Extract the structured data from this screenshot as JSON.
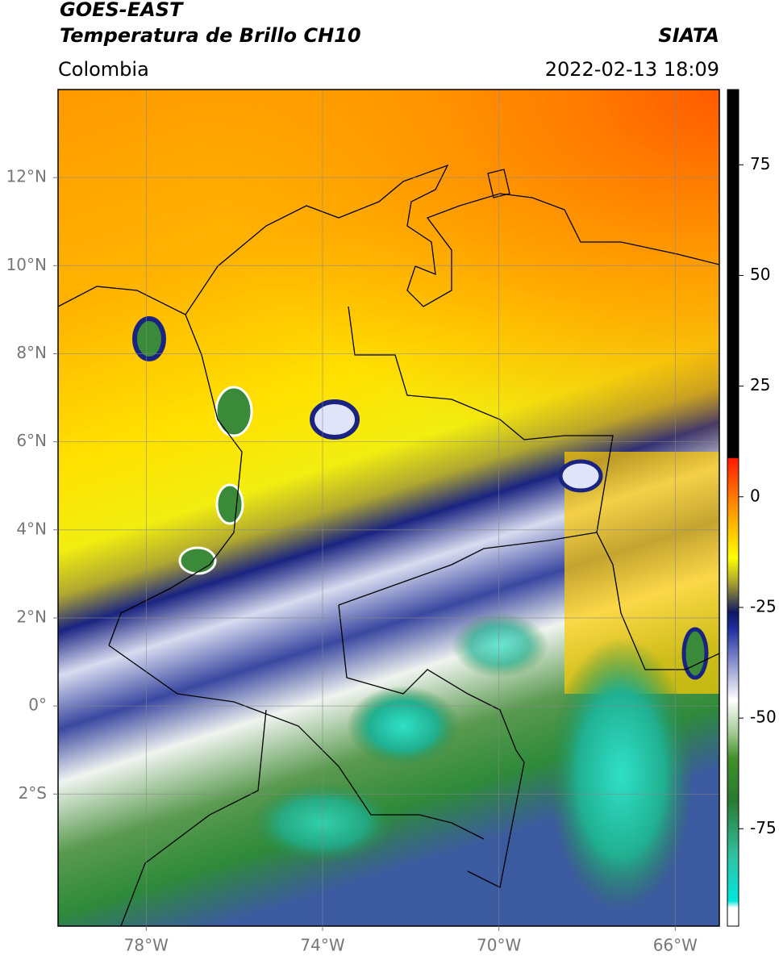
{
  "header": {
    "title": "GOES-EAST",
    "subtitle": "Temperatura de Brillo CH10",
    "source": "SIATA",
    "region": "Colombia",
    "datetime": "2022-02-13 18:09"
  },
  "map": {
    "xlim": [
      -80,
      -65
    ],
    "ylim": [
      -5,
      14
    ],
    "grid": true,
    "xticks": [
      {
        "value": -78,
        "label": "78°W"
      },
      {
        "value": -74,
        "label": "74°W"
      },
      {
        "value": -70,
        "label": "70°W"
      },
      {
        "value": -66,
        "label": "66°W"
      }
    ],
    "yticks": [
      {
        "value": 12,
        "label": "12°N"
      },
      {
        "value": 10,
        "label": "10°N"
      },
      {
        "value": 8,
        "label": "8°N"
      },
      {
        "value": 6,
        "label": "6°N"
      },
      {
        "value": 4,
        "label": "4°N"
      },
      {
        "value": 2,
        "label": "2°N"
      },
      {
        "value": 0,
        "label": "0°"
      },
      {
        "value": -2,
        "label": "2°S"
      }
    ]
  },
  "colorbar": {
    "lim": [
      -97,
      92
    ],
    "ticks": [
      75,
      50,
      25,
      0,
      -25,
      -50,
      -75
    ]
  }
}
